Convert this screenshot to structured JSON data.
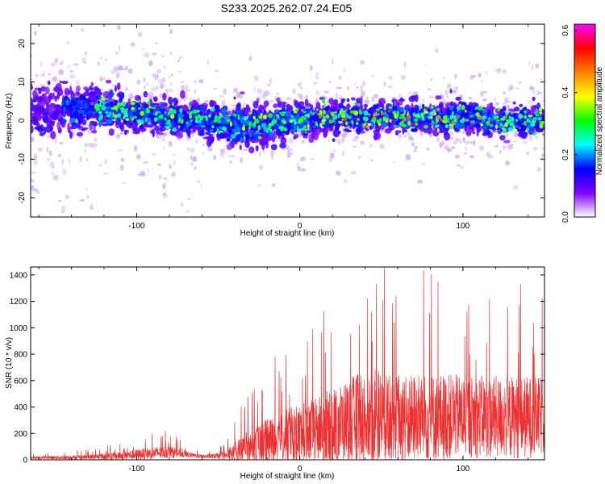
{
  "title": "S233.2025.262.07.24.E05",
  "chart_data": [
    {
      "type": "heatmap",
      "xlabel": "Height of straight line (km)",
      "ylabel": "Frequency (Hz)",
      "xlim": [
        -165,
        150
      ],
      "ylim": [
        -25,
        25
      ],
      "x_ticks": [
        -100,
        0,
        100
      ],
      "y_ticks": [
        -20,
        -10,
        0,
        10,
        20
      ],
      "colorbar": {
        "label": "Normalized spectral amplitude",
        "range": [
          0.0,
          0.62
        ],
        "ticks": [
          "0.0",
          "0.2",
          "0.4",
          "0.6"
        ],
        "colors": [
          "#ffffff",
          "#8000ff",
          "#0000ff",
          "#00ffff",
          "#00ff00",
          "#ffff00",
          "#ff8000",
          "#ff0000",
          "#ff00ff"
        ]
      },
      "band_profile": {
        "x": [
          -165,
          -140,
          -120,
          -100,
          -80,
          -60,
          -40,
          -20,
          0,
          20,
          40,
          60,
          80,
          100,
          120,
          150
        ],
        "center": [
          3,
          3,
          3,
          2,
          1,
          0,
          -1,
          -1,
          0,
          1,
          1,
          1,
          1,
          1,
          0,
          0
        ],
        "halfwidth": [
          8,
          8,
          7,
          6,
          6,
          6,
          7,
          7,
          6,
          5,
          5,
          5,
          5,
          5,
          5,
          5
        ]
      }
    },
    {
      "type": "line",
      "xlabel": "Height of straight line (km)",
      "ylabel": "SNR (10 * v/v)",
      "xlim": [
        -165,
        150
      ],
      "ylim": [
        0,
        1460
      ],
      "x_ticks": [
        -100,
        0,
        100
      ],
      "y_ticks": [
        0,
        200,
        400,
        600,
        800,
        1000,
        1200,
        1400
      ],
      "color": "#ee3030",
      "envelope": {
        "x": [
          -165,
          -130,
          -110,
          -90,
          -80,
          -70,
          -60,
          -45,
          -40,
          -30,
          -20,
          -10,
          0,
          10,
          20,
          30,
          40,
          50,
          60,
          80,
          100,
          120,
          140,
          150
        ],
        "base": [
          15,
          20,
          30,
          50,
          60,
          40,
          25,
          30,
          60,
          100,
          130,
          170,
          200,
          220,
          260,
          300,
          330,
          320,
          310,
          320,
          330,
          320,
          320,
          330
        ],
        "amp": [
          20,
          40,
          70,
          100,
          110,
          50,
          30,
          60,
          200,
          300,
          400,
          450,
          500,
          550,
          650,
          700,
          800,
          800,
          750,
          750,
          700,
          700,
          700,
          650
        ]
      }
    }
  ]
}
